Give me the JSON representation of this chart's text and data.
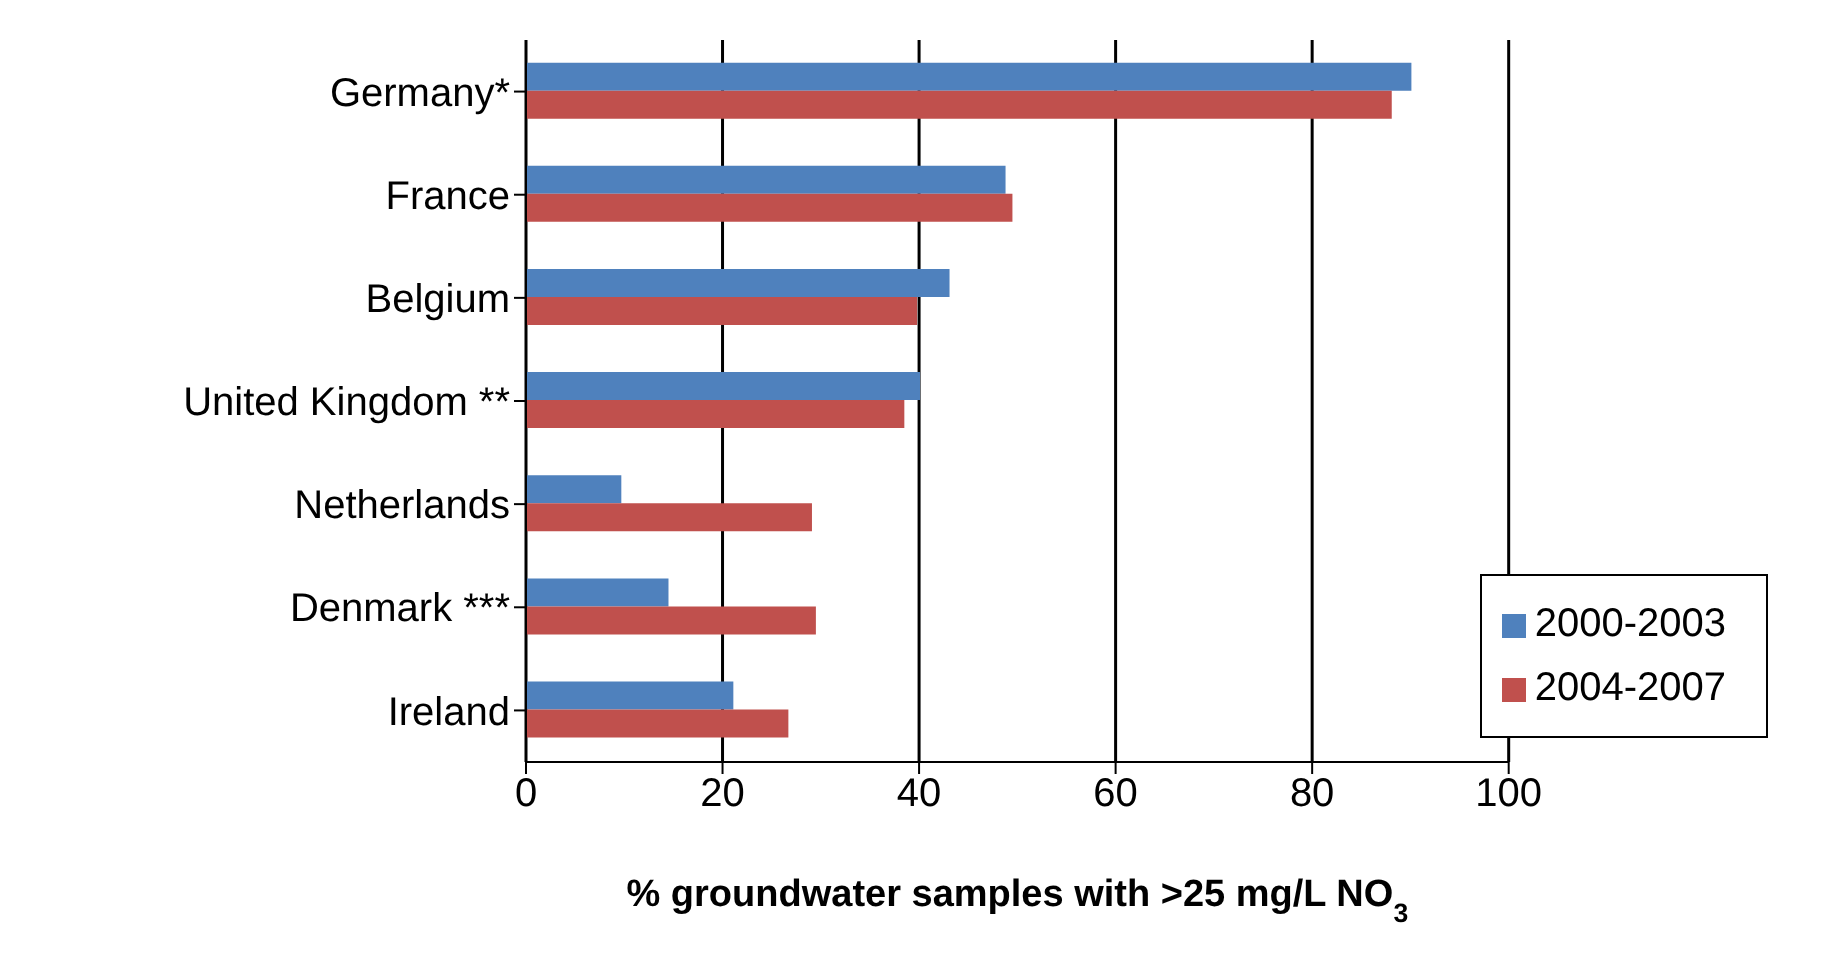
{
  "chart_data": {
    "type": "bar",
    "orientation": "horizontal",
    "xlabel": "% groundwater samples with >25 mg/L NO$_{3}$",
    "categories": [
      "Germany*",
      "France",
      "Belgium",
      "United Kingdom **",
      "Netherlands",
      "Denmark ***",
      "Ireland"
    ],
    "series": [
      {
        "name": "2000-2003",
        "color": "#4f81bd",
        "values": [
          90.1,
          48.8,
          43.1,
          40.1,
          9.7,
          14.5,
          21.1
        ]
      },
      {
        "name": "2004-2007",
        "color": "#c0504d",
        "values": [
          88.1,
          49.5,
          39.8,
          38.5,
          29.1,
          29.5,
          26.7
        ]
      }
    ],
    "xlim": [
      0,
      100
    ],
    "xticks": [
      0,
      20,
      40,
      60,
      80,
      100
    ],
    "grid": "x",
    "legend": "bottom right"
  }
}
